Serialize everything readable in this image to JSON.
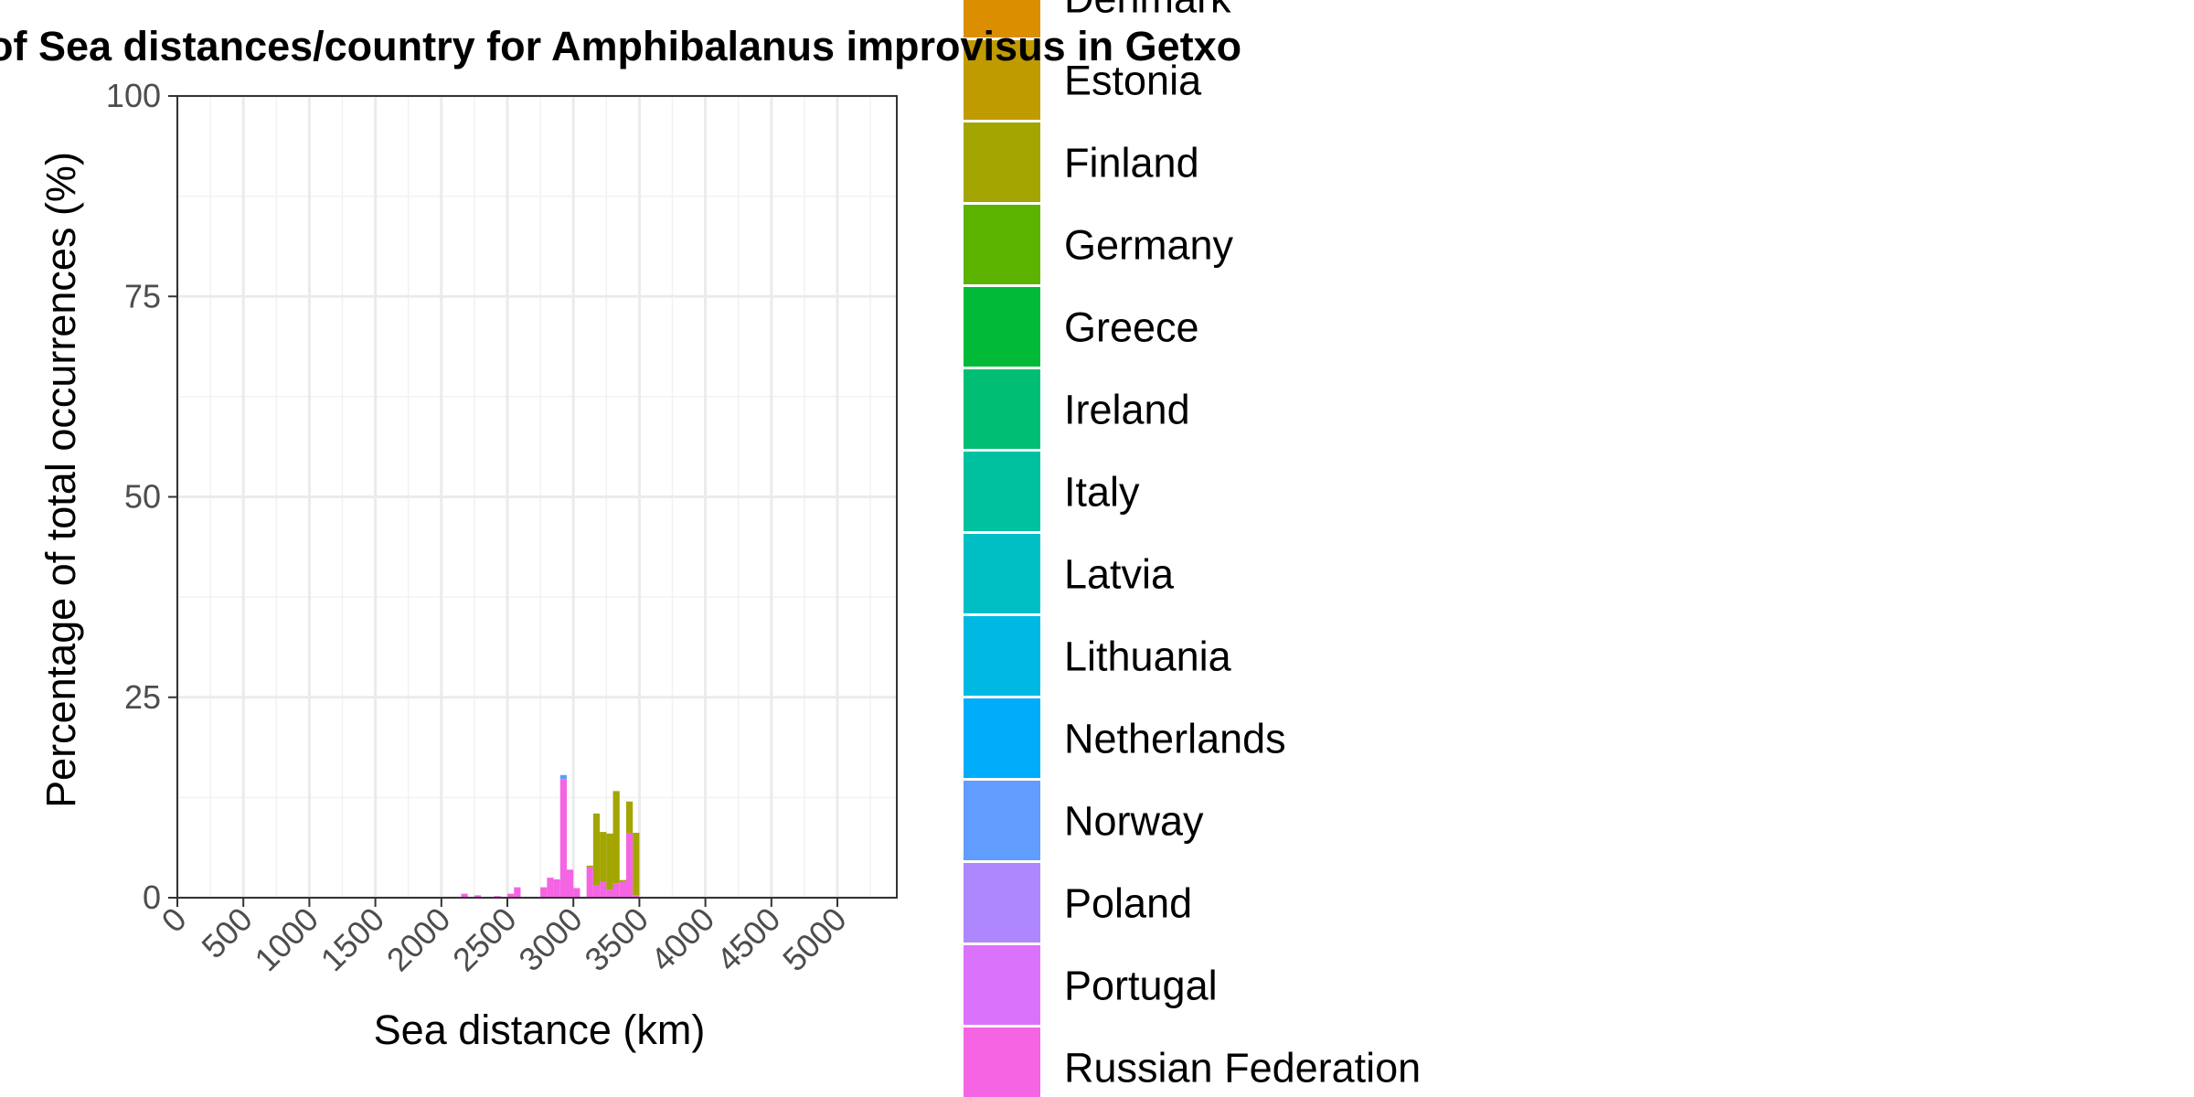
{
  "chart_data": {
    "type": "bar",
    "stacked": true,
    "title": "of Sea distances/country for Amphibalanus improvisus in Getxo",
    "xlabel": "Sea distance (km)",
    "ylabel": "Percentage of total occurrences (%)",
    "xlim": [
      0,
      5450
    ],
    "ylim": [
      0,
      100
    ],
    "bin_width": 50,
    "x_ticks": [
      "0",
      "500",
      "1000",
      "1500",
      "2000",
      "2500",
      "3000",
      "3500",
      "4000",
      "4500",
      "5000"
    ],
    "y_ticks": [
      "0",
      "25",
      "50",
      "75",
      "100"
    ],
    "grid": true,
    "legend_position": "right",
    "legend": [
      {
        "name": "Denmark",
        "color": "#DB8E00"
      },
      {
        "name": "Estonia",
        "color": "#C09B00"
      },
      {
        "name": "Finland",
        "color": "#A3A500"
      },
      {
        "name": "Germany",
        "color": "#5BB300"
      },
      {
        "name": "Greece",
        "color": "#00BA38"
      },
      {
        "name": "Ireland",
        "color": "#00BF74"
      },
      {
        "name": "Italy",
        "color": "#00C19F"
      },
      {
        "name": "Latvia",
        "color": "#00BFC4"
      },
      {
        "name": "Lithuania",
        "color": "#00B9E3"
      },
      {
        "name": "Netherlands",
        "color": "#00ADFA"
      },
      {
        "name": "Norway",
        "color": "#619CFF"
      },
      {
        "name": "Poland",
        "color": "#AE87FF"
      },
      {
        "name": "Portugal",
        "color": "#DB72FB"
      },
      {
        "name": "Russian Federation",
        "color": "#F564E3"
      }
    ],
    "series": [
      {
        "name": "Russian Federation",
        "x": [
          2175,
          2275,
          2425,
          2525,
          2575,
          2775,
          2825,
          2875,
          2925,
          2975,
          3025,
          3125,
          3175,
          3225,
          3275,
          3325,
          3375,
          3425,
          3475
        ],
        "values": [
          0.5,
          0.3,
          0.2,
          0.5,
          1.3,
          1.3,
          2.5,
          2.3,
          14.8,
          3.5,
          1.2,
          3.8,
          1.5,
          2.0,
          1.0,
          1.8,
          2.0,
          8.0,
          0.3
        ]
      },
      {
        "name": "Norway",
        "x": [
          2925
        ],
        "values": [
          0.5
        ]
      },
      {
        "name": "Finland",
        "x": [
          3125,
          3175,
          3225,
          3275,
          3325,
          3375,
          3425,
          3475
        ],
        "values": [
          0.2,
          9.0,
          6.2,
          7.0,
          11.5,
          0.2,
          4.0,
          7.8
        ]
      }
    ]
  }
}
